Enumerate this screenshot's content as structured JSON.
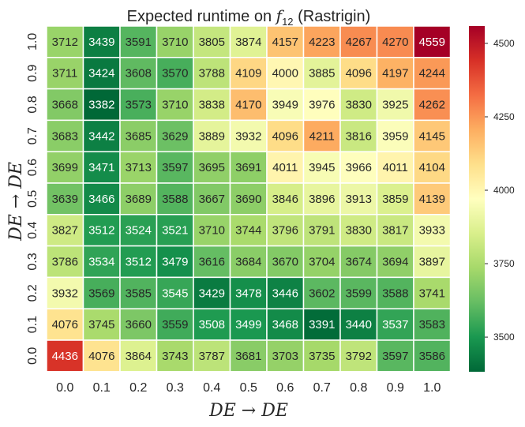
{
  "chart_data": {
    "type": "heatmap",
    "title_prefix": "Expected runtime on ",
    "title_symbol": "f",
    "title_subscript": "12",
    "title_suffix": " (Rastrigin)",
    "xlabel": "DE → DE",
    "ylabel": "DE → DE",
    "x_categories": [
      "0.0",
      "0.1",
      "0.2",
      "0.3",
      "0.4",
      "0.5",
      "0.6",
      "0.7",
      "0.8",
      "0.9",
      "1.0"
    ],
    "y_categories": [
      "1.0",
      "0.9",
      "0.8",
      "0.7",
      "0.6",
      "0.5",
      "0.4",
      "0.3",
      "0.2",
      "0.1",
      "0.0"
    ],
    "values": [
      [
        3712,
        3439,
        3591,
        3710,
        3805,
        3874,
        4157,
        4223,
        4267,
        4270,
        4559
      ],
      [
        3711,
        3424,
        3608,
        3570,
        3788,
        4109,
        4000,
        3885,
        4096,
        4197,
        4244
      ],
      [
        3668,
        3382,
        3573,
        3710,
        3838,
        4170,
        3949,
        3976,
        3830,
        3925,
        4262
      ],
      [
        3683,
        3442,
        3685,
        3629,
        3889,
        3932,
        4096,
        4211,
        3816,
        3959,
        4145
      ],
      [
        3699,
        3471,
        3713,
        3597,
        3695,
        3691,
        4011,
        3945,
        3966,
        4011,
        4104
      ],
      [
        3639,
        3466,
        3689,
        3588,
        3667,
        3690,
        3846,
        3896,
        3913,
        3859,
        4139
      ],
      [
        3827,
        3512,
        3524,
        3521,
        3710,
        3744,
        3796,
        3791,
        3830,
        3817,
        3933
      ],
      [
        3786,
        3534,
        3512,
        3479,
        3616,
        3684,
        3670,
        3704,
        3674,
        3694,
        3897
      ],
      [
        3932,
        3569,
        3585,
        3545,
        3429,
        3478,
        3446,
        3602,
        3599,
        3588,
        3741
      ],
      [
        4076,
        3745,
        3660,
        3559,
        3508,
        3499,
        3468,
        3391,
        3440,
        3537,
        3583
      ],
      [
        4436,
        4076,
        3864,
        3743,
        3787,
        3681,
        3703,
        3735,
        3792,
        3597,
        3586
      ]
    ],
    "vmin": 3382,
    "vmax": 4559,
    "colormap": "RdYlGn_r",
    "colorbar_ticks": [
      3500,
      3750,
      4000,
      4250,
      4500
    ],
    "grid_color": "#ffffff"
  }
}
